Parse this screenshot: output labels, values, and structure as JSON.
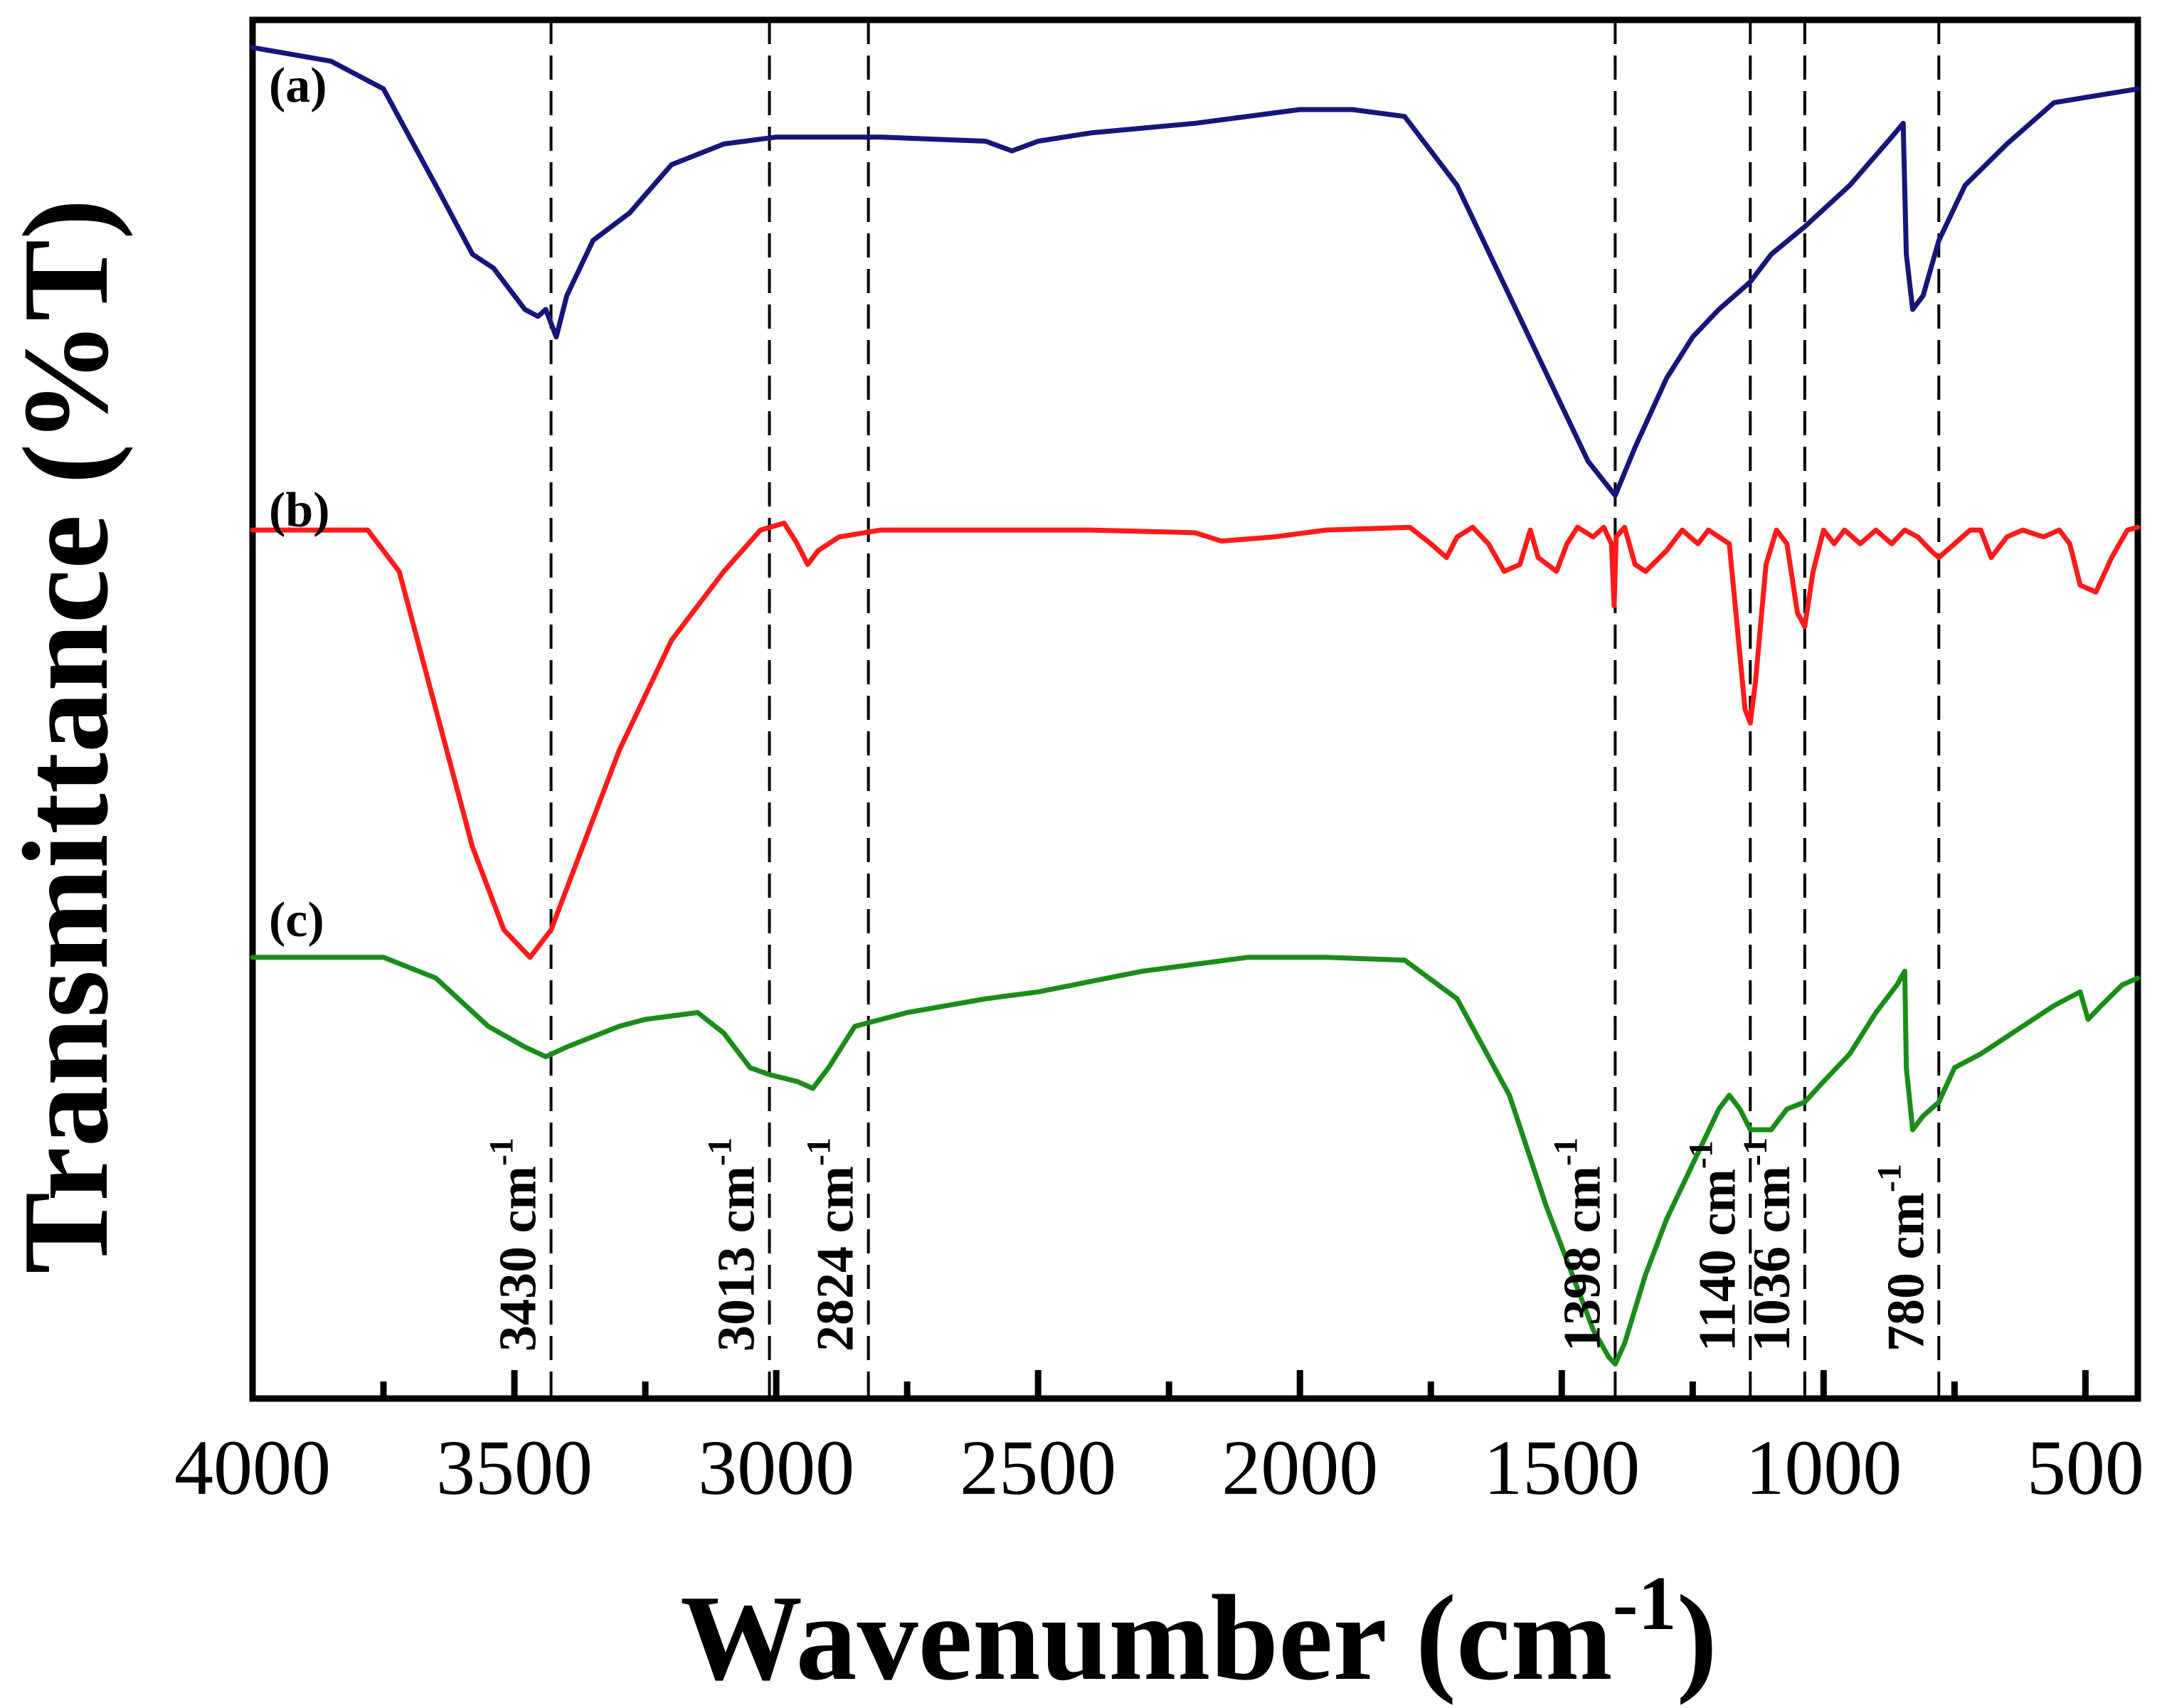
{
  "chart_data": {
    "type": "line",
    "title": "",
    "xlabel": "Wavenumber (cm",
    "xlabel_superscript": "-1",
    "xlabel_close": ")",
    "ylabel": "Transmittance (%T)",
    "xlim": [
      4000,
      400
    ],
    "x_reversed": true,
    "ylim": [
      0,
      1
    ],
    "y_ticks_shown": false,
    "grid": false,
    "legend": "none",
    "x_ticks": [
      4000,
      3500,
      3000,
      2500,
      2000,
      1500,
      1000,
      500
    ],
    "x_tick_labels": [
      "4000",
      "3500",
      "3000",
      "2500",
      "2000",
      "1500",
      "1000",
      "500"
    ],
    "series": [
      {
        "name": "(a)",
        "color": "#16167a",
        "points": [
          [
            4000,
            0.98
          ],
          [
            3850,
            0.97
          ],
          [
            3750,
            0.95
          ],
          [
            3650,
            0.88
          ],
          [
            3580,
            0.83
          ],
          [
            3540,
            0.82
          ],
          [
            3480,
            0.79
          ],
          [
            3455,
            0.785
          ],
          [
            3440,
            0.79
          ],
          [
            3420,
            0.77
          ],
          [
            3400,
            0.8
          ],
          [
            3350,
            0.84
          ],
          [
            3280,
            0.86
          ],
          [
            3200,
            0.895
          ],
          [
            3100,
            0.91
          ],
          [
            3000,
            0.915
          ],
          [
            2800,
            0.915
          ],
          [
            2600,
            0.912
          ],
          [
            2550,
            0.905
          ],
          [
            2500,
            0.912
          ],
          [
            2400,
            0.918
          ],
          [
            2200,
            0.925
          ],
          [
            2000,
            0.935
          ],
          [
            1900,
            0.935
          ],
          [
            1800,
            0.93
          ],
          [
            1700,
            0.88
          ],
          [
            1600,
            0.8
          ],
          [
            1500,
            0.72
          ],
          [
            1450,
            0.68
          ],
          [
            1398,
            0.655
          ],
          [
            1360,
            0.69
          ],
          [
            1300,
            0.74
          ],
          [
            1250,
            0.77
          ],
          [
            1200,
            0.79
          ],
          [
            1140,
            0.81
          ],
          [
            1100,
            0.83
          ],
          [
            1036,
            0.85
          ],
          [
            950,
            0.88
          ],
          [
            870,
            0.915
          ],
          [
            848,
            0.925
          ],
          [
            842,
            0.83
          ],
          [
            830,
            0.79
          ],
          [
            810,
            0.8
          ],
          [
            780,
            0.84
          ],
          [
            730,
            0.88
          ],
          [
            650,
            0.91
          ],
          [
            560,
            0.94
          ],
          [
            480,
            0.945
          ],
          [
            400,
            0.95
          ]
        ]
      },
      {
        "name": "(b)",
        "color": "#ff1a1a",
        "points": [
          [
            4000,
            0.63
          ],
          [
            3780,
            0.63
          ],
          [
            3720,
            0.6
          ],
          [
            3650,
            0.5
          ],
          [
            3580,
            0.4
          ],
          [
            3520,
            0.34
          ],
          [
            3470,
            0.32
          ],
          [
            3430,
            0.34
          ],
          [
            3380,
            0.39
          ],
          [
            3300,
            0.47
          ],
          [
            3200,
            0.55
          ],
          [
            3100,
            0.6
          ],
          [
            3030,
            0.63
          ],
          [
            2985,
            0.635
          ],
          [
            2960,
            0.62
          ],
          [
            2940,
            0.605
          ],
          [
            2920,
            0.615
          ],
          [
            2880,
            0.625
          ],
          [
            2800,
            0.63
          ],
          [
            2600,
            0.63
          ],
          [
            2400,
            0.63
          ],
          [
            2200,
            0.628
          ],
          [
            2150,
            0.622
          ],
          [
            2050,
            0.625
          ],
          [
            1950,
            0.63
          ],
          [
            1790,
            0.632
          ],
          [
            1750,
            0.62
          ],
          [
            1720,
            0.61
          ],
          [
            1700,
            0.625
          ],
          [
            1670,
            0.632
          ],
          [
            1640,
            0.62
          ],
          [
            1610,
            0.6
          ],
          [
            1580,
            0.605
          ],
          [
            1560,
            0.63
          ],
          [
            1545,
            0.61
          ],
          [
            1510,
            0.6
          ],
          [
            1490,
            0.62
          ],
          [
            1470,
            0.632
          ],
          [
            1440,
            0.625
          ],
          [
            1420,
            0.632
          ],
          [
            1405,
            0.62
          ],
          [
            1400,
            0.575
          ],
          [
            1396,
            0.625
          ],
          [
            1380,
            0.632
          ],
          [
            1360,
            0.605
          ],
          [
            1340,
            0.6
          ],
          [
            1300,
            0.615
          ],
          [
            1270,
            0.63
          ],
          [
            1240,
            0.62
          ],
          [
            1220,
            0.63
          ],
          [
            1200,
            0.625
          ],
          [
            1180,
            0.62
          ],
          [
            1165,
            0.56
          ],
          [
            1150,
            0.5
          ],
          [
            1140,
            0.49
          ],
          [
            1130,
            0.52
          ],
          [
            1110,
            0.605
          ],
          [
            1090,
            0.63
          ],
          [
            1070,
            0.62
          ],
          [
            1050,
            0.57
          ],
          [
            1036,
            0.56
          ],
          [
            1020,
            0.6
          ],
          [
            1000,
            0.63
          ],
          [
            980,
            0.62
          ],
          [
            960,
            0.63
          ],
          [
            930,
            0.62
          ],
          [
            900,
            0.63
          ],
          [
            870,
            0.62
          ],
          [
            845,
            0.63
          ],
          [
            820,
            0.625
          ],
          [
            795,
            0.615
          ],
          [
            780,
            0.61
          ],
          [
            750,
            0.62
          ],
          [
            720,
            0.63
          ],
          [
            700,
            0.63
          ],
          [
            680,
            0.61
          ],
          [
            650,
            0.625
          ],
          [
            620,
            0.63
          ],
          [
            580,
            0.625
          ],
          [
            550,
            0.63
          ],
          [
            530,
            0.62
          ],
          [
            510,
            0.59
          ],
          [
            480,
            0.585
          ],
          [
            450,
            0.61
          ],
          [
            420,
            0.63
          ],
          [
            400,
            0.632
          ]
        ]
      },
      {
        "name": "(c)",
        "color": "#1a8c1a",
        "points": [
          [
            4000,
            0.32
          ],
          [
            3750,
            0.32
          ],
          [
            3650,
            0.305
          ],
          [
            3550,
            0.27
          ],
          [
            3480,
            0.255
          ],
          [
            3440,
            0.248
          ],
          [
            3400,
            0.255
          ],
          [
            3300,
            0.27
          ],
          [
            3250,
            0.275
          ],
          [
            3150,
            0.28
          ],
          [
            3100,
            0.265
          ],
          [
            3050,
            0.24
          ],
          [
            3013,
            0.235
          ],
          [
            2960,
            0.23
          ],
          [
            2930,
            0.225
          ],
          [
            2900,
            0.24
          ],
          [
            2850,
            0.27
          ],
          [
            2750,
            0.28
          ],
          [
            2600,
            0.29
          ],
          [
            2500,
            0.295
          ],
          [
            2300,
            0.31
          ],
          [
            2100,
            0.32
          ],
          [
            1950,
            0.32
          ],
          [
            1800,
            0.318
          ],
          [
            1700,
            0.29
          ],
          [
            1600,
            0.22
          ],
          [
            1530,
            0.14
          ],
          [
            1480,
            0.09
          ],
          [
            1440,
            0.05
          ],
          [
            1410,
            0.03
          ],
          [
            1398,
            0.025
          ],
          [
            1380,
            0.04
          ],
          [
            1340,
            0.09
          ],
          [
            1300,
            0.13
          ],
          [
            1250,
            0.17
          ],
          [
            1200,
            0.21
          ],
          [
            1180,
            0.22
          ],
          [
            1160,
            0.21
          ],
          [
            1140,
            0.195
          ],
          [
            1100,
            0.195
          ],
          [
            1070,
            0.21
          ],
          [
            1036,
            0.215
          ],
          [
            1000,
            0.23
          ],
          [
            950,
            0.25
          ],
          [
            900,
            0.28
          ],
          [
            860,
            0.3
          ],
          [
            845,
            0.31
          ],
          [
            842,
            0.24
          ],
          [
            830,
            0.195
          ],
          [
            810,
            0.205
          ],
          [
            780,
            0.215
          ],
          [
            750,
            0.24
          ],
          [
            700,
            0.25
          ],
          [
            620,
            0.27
          ],
          [
            560,
            0.285
          ],
          [
            510,
            0.295
          ],
          [
            495,
            0.275
          ],
          [
            470,
            0.285
          ],
          [
            430,
            0.3
          ],
          [
            400,
            0.305
          ]
        ]
      }
    ],
    "series_labels": [
      "(a)",
      "(b)",
      "(c)"
    ],
    "reference_lines": [
      {
        "x": 3430,
        "label": "3430 cm",
        "sup": "-1"
      },
      {
        "x": 3013,
        "label": "3013 cm",
        "sup": "-1"
      },
      {
        "x": 2824,
        "label": "2824 cm",
        "sup": "-1"
      },
      {
        "x": 1398,
        "label": "1398 cm",
        "sup": "-1"
      },
      {
        "x": 1140,
        "label": "1140 cm",
        "sup": "-1"
      },
      {
        "x": 1036,
        "label": "1036 cm",
        "sup": "-1"
      },
      {
        "x": 780,
        "label": "780 cm",
        "sup": "-1"
      }
    ]
  }
}
